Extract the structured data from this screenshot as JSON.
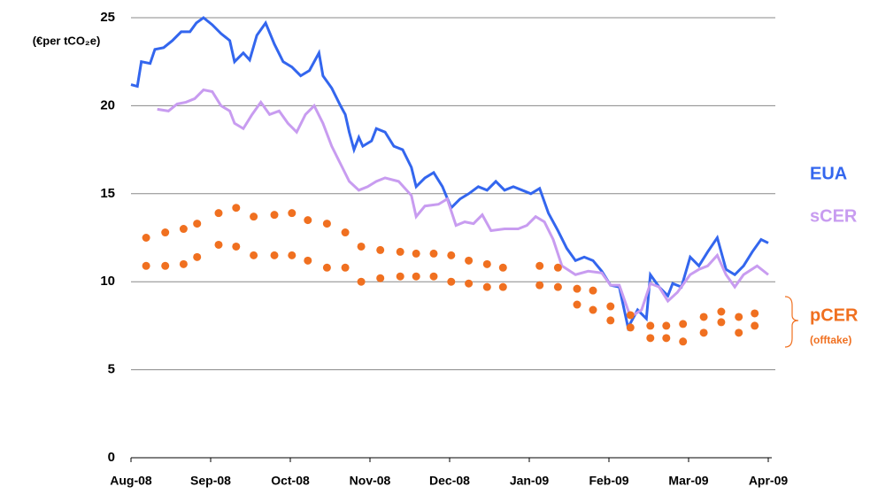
{
  "chart_data": {
    "type": "line",
    "y_label": "(€per tCO₂e)",
    "xlim": [
      0,
      8
    ],
    "ylim": [
      0,
      25
    ],
    "xticks": [
      {
        "value": 0,
        "label": "Aug-08"
      },
      {
        "value": 1,
        "label": "Sep-08"
      },
      {
        "value": 2,
        "label": "Oct-08"
      },
      {
        "value": 3,
        "label": "Nov-08"
      },
      {
        "value": 4,
        "label": "Dec-08"
      },
      {
        "value": 5,
        "label": "Jan-09"
      },
      {
        "value": 6,
        "label": "Feb-09"
      },
      {
        "value": 7,
        "label": "Mar-09"
      },
      {
        "value": 8,
        "label": "Apr-09"
      }
    ],
    "yticks": [
      0,
      5,
      10,
      15,
      20,
      25
    ],
    "grid": true,
    "series": [
      {
        "name": "EUA",
        "type": "line",
        "color": "#3366ee",
        "x": [
          0,
          0.08,
          0.13,
          0.24,
          0.3,
          0.41,
          0.52,
          0.63,
          0.74,
          0.82,
          0.91,
          1.02,
          1.13,
          1.24,
          1.3,
          1.41,
          1.49,
          1.58,
          1.69,
          1.8,
          1.91,
          2.02,
          2.13,
          2.24,
          2.36,
          2.41,
          2.52,
          2.63,
          2.69,
          2.74,
          2.8,
          2.86,
          2.91,
          3.02,
          3.08,
          3.19,
          3.3,
          3.41,
          3.52,
          3.58,
          3.69,
          3.8,
          3.91,
          4.02,
          4.13,
          4.24,
          4.36,
          4.47,
          4.58,
          4.69,
          4.8,
          4.91,
          5.02,
          5.13,
          5.24,
          5.36,
          5.47,
          5.58,
          5.69,
          5.8,
          5.91,
          6.02,
          6.13,
          6.24,
          6.36,
          6.47,
          6.52,
          6.63,
          6.74,
          6.8,
          6.91,
          7.02,
          7.13,
          7.24,
          7.36,
          7.47,
          7.58,
          7.69,
          7.8,
          7.91,
          8
        ],
        "values": [
          21.2,
          21.1,
          22.5,
          22.4,
          23.2,
          23.3,
          23.7,
          24.2,
          24.2,
          24.7,
          25,
          24.6,
          24.1,
          23.7,
          22.5,
          23,
          22.6,
          24,
          24.7,
          23.5,
          22.5,
          22.2,
          21.7,
          22,
          23,
          21.7,
          21,
          20,
          19.5,
          18.5,
          17.5,
          18.2,
          17.7,
          18,
          18.7,
          18.5,
          17.7,
          17.5,
          16.5,
          15.4,
          15.9,
          16.2,
          15.4,
          14.2,
          14.7,
          15,
          15.4,
          15.2,
          15.7,
          15.2,
          15.4,
          15.2,
          15,
          15.3,
          13.9,
          12.9,
          11.9,
          11.2,
          11.4,
          11.2,
          10.6,
          9.8,
          9.7,
          7.4,
          8.4,
          7.9,
          10.4,
          9.7,
          9.2,
          9.9,
          9.7,
          11.4,
          10.9,
          11.7,
          12.5,
          10.7,
          10.4,
          10.9,
          11.7,
          12.4,
          12.2
        ]
      },
      {
        "name": "sCER",
        "type": "line",
        "color": "#c89cf0",
        "x": [
          0.33,
          0.47,
          0.58,
          0.69,
          0.8,
          0.91,
          1.02,
          1.13,
          1.24,
          1.3,
          1.41,
          1.52,
          1.63,
          1.74,
          1.86,
          1.97,
          2.08,
          2.19,
          2.3,
          2.41,
          2.52,
          2.63,
          2.74,
          2.86,
          2.97,
          3.08,
          3.19,
          3.36,
          3.52,
          3.58,
          3.69,
          3.86,
          3.97,
          4.08,
          4.19,
          4.3,
          4.41,
          4.52,
          4.69,
          4.86,
          4.97,
          5.08,
          5.19,
          5.3,
          5.41,
          5.58,
          5.74,
          5.91,
          6.02,
          6.13,
          6.27,
          6.41,
          6.52,
          6.63,
          6.74,
          6.86,
          7.02,
          7.13,
          7.24,
          7.36,
          7.47,
          7.58,
          7.69,
          7.86,
          8
        ],
        "values": [
          19.8,
          19.7,
          20.1,
          20.2,
          20.4,
          20.9,
          20.8,
          20,
          19.7,
          19,
          18.7,
          19.5,
          20.2,
          19.5,
          19.7,
          19,
          18.5,
          19.5,
          20,
          19,
          17.7,
          16.7,
          15.7,
          15.2,
          15.4,
          15.7,
          15.9,
          15.7,
          14.9,
          13.7,
          14.3,
          14.4,
          14.7,
          13.2,
          13.4,
          13.3,
          13.8,
          12.9,
          13,
          13,
          13.2,
          13.7,
          13.4,
          12.4,
          10.9,
          10.4,
          10.6,
          10.5,
          9.8,
          9.8,
          8,
          8.4,
          9.9,
          9.7,
          8.9,
          9.4,
          10.4,
          10.7,
          10.9,
          11.5,
          10.4,
          9.7,
          10.4,
          10.9,
          10.4
        ]
      },
      {
        "name": "pCER",
        "subtitle": "(offtake)",
        "type": "scatter",
        "color": "#f07020",
        "x": [
          0.19,
          0.43,
          0.66,
          0.83,
          1.1,
          1.32,
          1.54,
          1.8,
          2.02,
          2.22,
          2.46,
          2.69,
          2.89,
          3.13,
          3.38,
          3.58,
          3.8,
          4.02,
          4.24,
          4.47,
          4.67,
          5.13,
          5.36,
          5.6,
          5.8,
          6.02,
          6.27,
          6.52,
          6.72,
          6.93,
          7.19,
          7.41,
          7.63,
          7.83
        ],
        "values": [
          12.5,
          12.8,
          13,
          13.3,
          13.9,
          14.2,
          13.7,
          13.8,
          13.9,
          13.5,
          13.3,
          12.8,
          12,
          11.8,
          11.7,
          11.6,
          11.6,
          11.5,
          11.2,
          11,
          10.8,
          10.9,
          10.8,
          9.6,
          9.5,
          8.6,
          8.1,
          7.5,
          7.5,
          7.6,
          8,
          8.3,
          8,
          8.2
        ],
        "values_low": [
          10.9,
          10.9,
          11,
          11.4,
          12.1,
          12,
          11.5,
          11.5,
          11.5,
          11.2,
          10.8,
          10.8,
          10,
          10.2,
          10.3,
          10.3,
          10.3,
          10,
          9.9,
          9.7,
          9.7,
          9.8,
          9.7,
          8.7,
          8.4,
          7.8,
          7.4,
          6.8,
          6.8,
          6.6,
          7.1,
          7.7,
          7.1,
          7.5
        ]
      }
    ]
  }
}
